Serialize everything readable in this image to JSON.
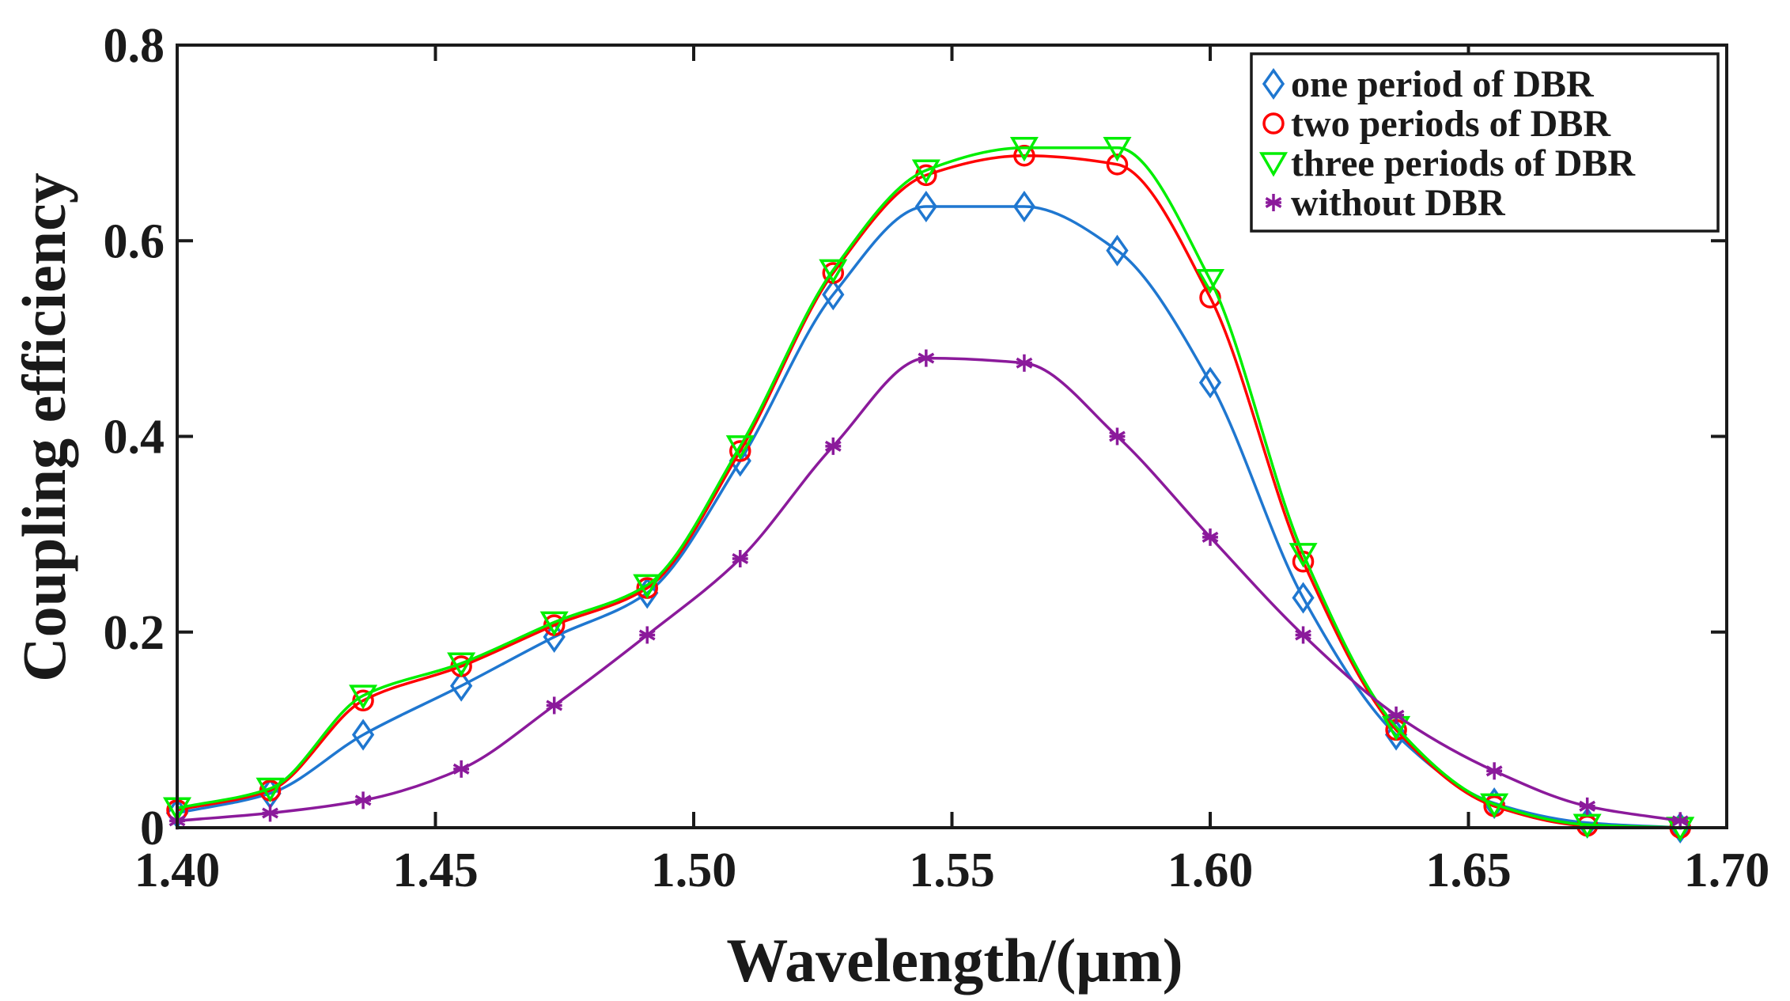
{
  "chart_data": {
    "type": "line",
    "title": "",
    "xlabel": "Wavelength/(μm)",
    "ylabel": "Coupling efficiency",
    "xlim": [
      1.4,
      1.7
    ],
    "ylim": [
      0,
      0.8
    ],
    "grid": false,
    "legend_position": "top-right",
    "x_ticks": [
      1.4,
      1.45,
      1.5,
      1.55,
      1.6,
      1.65,
      1.7
    ],
    "x_tick_labels": [
      "1.40",
      "1.45",
      "1.50",
      "1.55",
      "1.60",
      "1.65",
      "1.70"
    ],
    "y_ticks": [
      0,
      0.2,
      0.4,
      0.6,
      0.8
    ],
    "y_tick_labels": [
      "0",
      "0.2",
      "0.4",
      "0.6",
      "0.8"
    ],
    "x": [
      1.4,
      1.418,
      1.436,
      1.455,
      1.473,
      1.491,
      1.509,
      1.527,
      1.545,
      1.564,
      1.582,
      1.6,
      1.618,
      1.636,
      1.655,
      1.673,
      1.691
    ],
    "series": [
      {
        "name": "one period of DBR",
        "color": "#1f77d0",
        "marker": "diamond",
        "values": [
          0.015,
          0.035,
          0.095,
          0.145,
          0.195,
          0.24,
          0.375,
          0.545,
          0.635,
          0.635,
          0.59,
          0.455,
          0.235,
          0.095,
          0.025,
          0.005,
          0.0
        ]
      },
      {
        "name": "two periods of DBR",
        "color": "#ff0000",
        "marker": "circle",
        "values": [
          0.018,
          0.038,
          0.13,
          0.165,
          0.207,
          0.245,
          0.385,
          0.567,
          0.667,
          0.687,
          0.678,
          0.542,
          0.272,
          0.1,
          0.022,
          0.002,
          0.0
        ]
      },
      {
        "name": "three periods of DBR",
        "color": "#00ee00",
        "marker": "triangle-down",
        "values": [
          0.02,
          0.04,
          0.135,
          0.168,
          0.21,
          0.248,
          0.39,
          0.57,
          0.672,
          0.695,
          0.695,
          0.56,
          0.28,
          0.103,
          0.024,
          0.003,
          0.0
        ]
      },
      {
        "name": "without DBR",
        "color": "#8b1a9b",
        "marker": "asterisk",
        "values": [
          0.007,
          0.015,
          0.028,
          0.06,
          0.125,
          0.197,
          0.275,
          0.39,
          0.48,
          0.475,
          0.4,
          0.297,
          0.197,
          0.115,
          0.058,
          0.022,
          0.007
        ]
      }
    ]
  }
}
